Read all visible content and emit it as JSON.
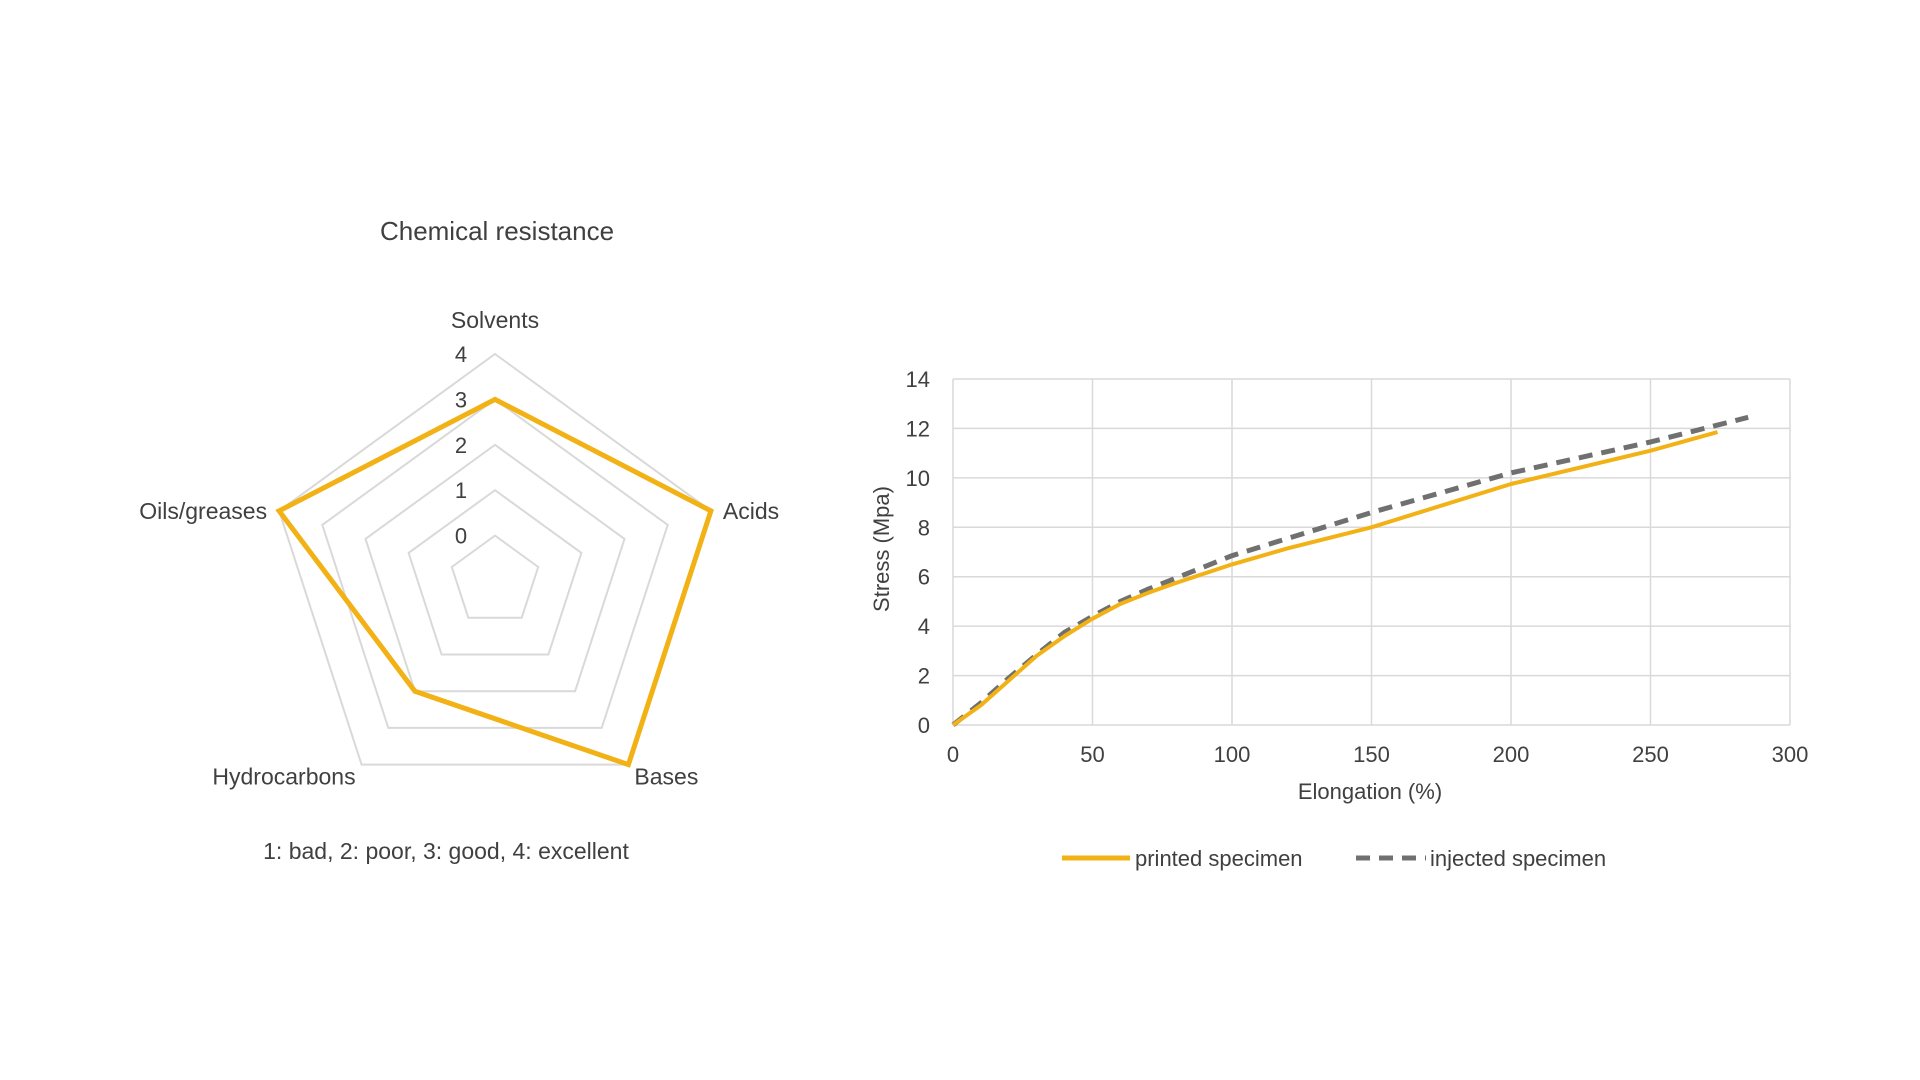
{
  "chart_data": [
    {
      "type": "radar",
      "title": "Chemical resistance",
      "note": "1: bad, 2: poor, 3: good, 4: excellent",
      "categories": [
        "Solvents",
        "Acids",
        "Bases",
        "Hydrocarbons",
        "Oils/greases"
      ],
      "values": [
        3,
        4,
        4,
        2,
        4
      ],
      "rmin": 0,
      "rmax": 4,
      "tick_labels": [
        "0",
        "1",
        "2",
        "3",
        "4"
      ],
      "series_color": "#F2B115",
      "grid_color": "#D9D9D9",
      "grid": true
    },
    {
      "type": "line",
      "xlabel": "Elongation (%)",
      "ylabel": "Stress (Mpa)",
      "xlim": [
        0,
        300
      ],
      "ylim": [
        0,
        14
      ],
      "x_ticks": [
        "0",
        "50",
        "100",
        "150",
        "200",
        "250",
        "300"
      ],
      "y_ticks": [
        "0",
        "2",
        "4",
        "6",
        "8",
        "10",
        "12",
        "14"
      ],
      "grid": true,
      "legend": "bottom",
      "series": [
        {
          "name": "printed specimen",
          "color": "#F2B115",
          "dashed": false,
          "points": [
            [
              0,
              0
            ],
            [
              10,
              0.8
            ],
            [
              20,
              1.8
            ],
            [
              30,
              2.8
            ],
            [
              40,
              3.6
            ],
            [
              50,
              4.3
            ],
            [
              60,
              4.9
            ],
            [
              70,
              5.35
            ],
            [
              80,
              5.75
            ],
            [
              100,
              6.5
            ],
            [
              120,
              7.15
            ],
            [
              150,
              8.0
            ],
            [
              200,
              9.75
            ],
            [
              250,
              11.1
            ],
            [
              274,
              11.85
            ]
          ]
        },
        {
          "name": "injected specimen",
          "color": "#707070",
          "dashed": true,
          "points": [
            [
              0,
              0
            ],
            [
              10,
              0.9
            ],
            [
              20,
              1.9
            ],
            [
              30,
              2.85
            ],
            [
              40,
              3.75
            ],
            [
              50,
              4.4
            ],
            [
              60,
              5.0
            ],
            [
              70,
              5.5
            ],
            [
              80,
              5.95
            ],
            [
              100,
              6.85
            ],
            [
              120,
              7.55
            ],
            [
              150,
              8.6
            ],
            [
              200,
              10.2
            ],
            [
              250,
              11.45
            ],
            [
              285,
              12.45
            ]
          ]
        }
      ]
    }
  ]
}
